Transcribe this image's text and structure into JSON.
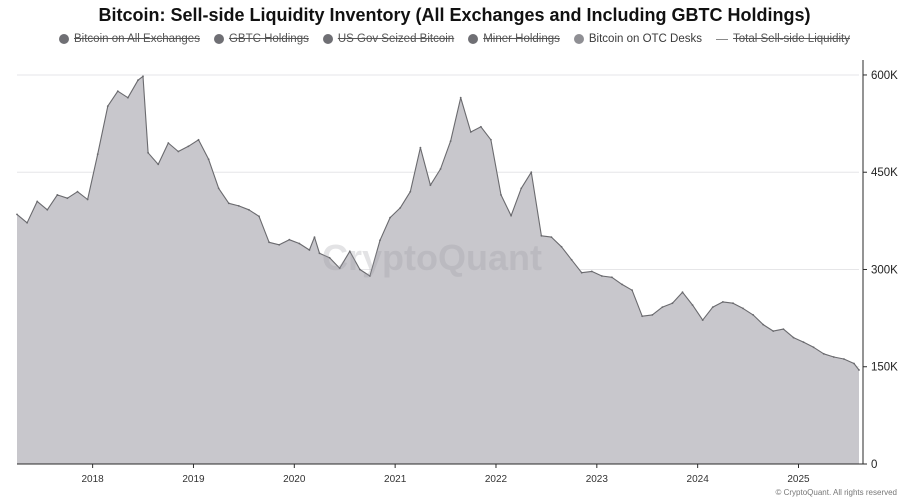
{
  "chart_data": {
    "type": "area",
    "title": "Bitcoin: Sell-side Liquidity Inventory (All Exchanges and Including GBTC Holdings)",
    "legend": {
      "placement": "top-center",
      "items": [
        {
          "label": "Bitcoin on All Exchanges",
          "color": "#6f6f74",
          "active": false,
          "marker": "dot"
        },
        {
          "label": "GBTC Holdings",
          "color": "#6f6f74",
          "active": false,
          "marker": "dot"
        },
        {
          "label": "US Gov Seized Bitcoin",
          "color": "#6f6f74",
          "active": false,
          "marker": "dot"
        },
        {
          "label": "Miner Holdings",
          "color": "#6f6f74",
          "active": false,
          "marker": "dot"
        },
        {
          "label": "Bitcoin on OTC Desks",
          "color": "#8f8f94",
          "active": true,
          "marker": "dot"
        },
        {
          "label": "Total Sell-side Liquidity",
          "color": "#8a8a8a",
          "active": false,
          "marker": "line"
        }
      ]
    },
    "series": [
      {
        "name": "Bitcoin on OTC Desks",
        "color": "#c8c7cc",
        "stroke": "#6a6a6e",
        "x": [
          2017.25,
          2017.35,
          2017.45,
          2017.55,
          2017.65,
          2017.75,
          2017.85,
          2017.95,
          2018.05,
          2018.15,
          2018.25,
          2018.35,
          2018.45,
          2018.5,
          2018.55,
          2018.65,
          2018.75,
          2018.85,
          2018.95,
          2019.05,
          2019.15,
          2019.25,
          2019.35,
          2019.45,
          2019.55,
          2019.65,
          2019.75,
          2019.85,
          2019.95,
          2020.05,
          2020.15,
          2020.2,
          2020.25,
          2020.35,
          2020.45,
          2020.55,
          2020.65,
          2020.75,
          2020.85,
          2020.95,
          2021.05,
          2021.15,
          2021.25,
          2021.35,
          2021.45,
          2021.55,
          2021.65,
          2021.75,
          2021.85,
          2021.95,
          2022.05,
          2022.15,
          2022.25,
          2022.35,
          2022.45,
          2022.55,
          2022.65,
          2022.75,
          2022.85,
          2022.95,
          2023.05,
          2023.15,
          2023.25,
          2023.35,
          2023.45,
          2023.55,
          2023.65,
          2023.75,
          2023.85,
          2023.95,
          2024.05,
          2024.15,
          2024.25,
          2024.35,
          2024.45,
          2024.55,
          2024.65,
          2024.75,
          2024.85,
          2024.95,
          2025.05,
          2025.15,
          2025.25,
          2025.35,
          2025.45,
          2025.55,
          2025.6
        ],
        "values": [
          385000,
          372000,
          405000,
          392000,
          415000,
          410000,
          420000,
          408000,
          478000,
          552000,
          575000,
          565000,
          592000,
          598000,
          480000,
          462000,
          495000,
          482000,
          490000,
          500000,
          470000,
          425000,
          402000,
          398000,
          392000,
          382000,
          342000,
          338000,
          346000,
          340000,
          330000,
          350000,
          325000,
          318000,
          302000,
          328000,
          300000,
          290000,
          345000,
          380000,
          395000,
          420000,
          488000,
          430000,
          455000,
          498000,
          565000,
          512000,
          520000,
          500000,
          415000,
          383000,
          425000,
          450000,
          352000,
          350000,
          335000,
          315000,
          295000,
          297000,
          290000,
          288000,
          277000,
          268000,
          228000,
          230000,
          242000,
          248000,
          265000,
          245000,
          222000,
          242000,
          250000,
          248000,
          240000,
          230000,
          215000,
          205000,
          208000,
          195000,
          188000,
          180000,
          170000,
          165000,
          162000,
          155000,
          145000
        ]
      }
    ],
    "xlim": [
      2017.25,
      2025.6
    ],
    "xticks": [
      "2018",
      "2019",
      "2020",
      "2021",
      "2022",
      "2023",
      "2024",
      "2025"
    ],
    "xtick_values": [
      2018,
      2019,
      2020,
      2021,
      2022,
      2023,
      2024,
      2025
    ],
    "ylim": [
      0,
      620000
    ],
    "yticks": [
      "0",
      "150K",
      "300K",
      "450K",
      "600K"
    ],
    "ytick_values": [
      0,
      150000,
      300000,
      450000,
      600000
    ],
    "xlabel": "",
    "ylabel": "",
    "grid": true,
    "watermark": "CryptoQuant"
  },
  "footer": "© CryptoQuant. All rights reserved"
}
